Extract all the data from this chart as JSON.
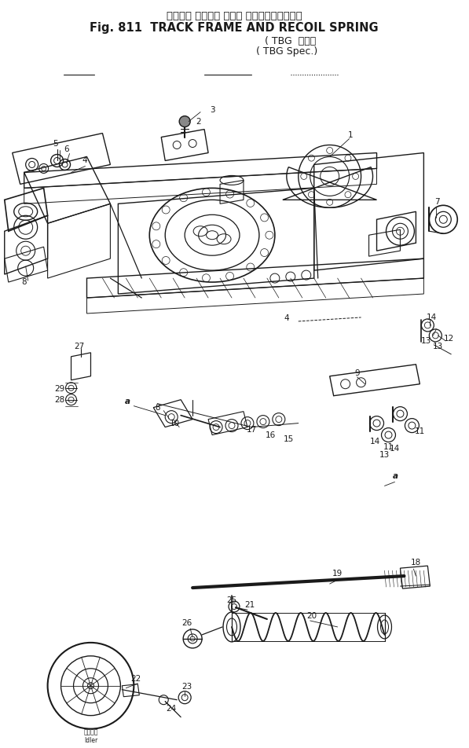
{
  "title_japanese": "トラック フレーム および リコイルスプリング",
  "title_english": "Fig. 811  TRACK FRAME AND RECOIL SPRING",
  "title_spec_jp": "TBG 仕様",
  "title_spec_en": "TBG Spec.",
  "bg_color": "#ffffff",
  "fig_width": 5.97,
  "fig_height": 9.52,
  "dpi": 100,
  "drawing_color": "#1a1a1a",
  "label_fontsize": 7.5
}
